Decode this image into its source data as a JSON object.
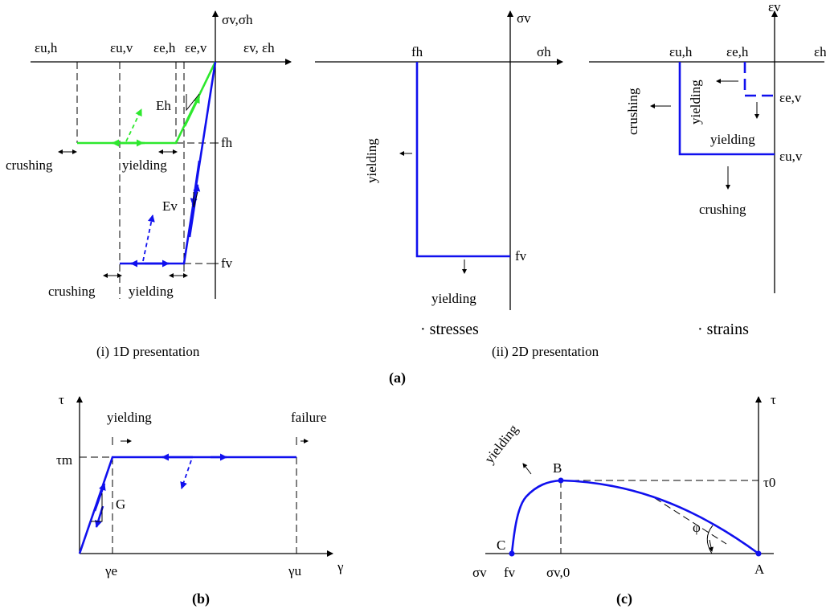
{
  "panel_a": {
    "p1": {
      "axis_top": "σv,σh",
      "axis_right": "εv, εh",
      "strain_labels": [
        "εu,h",
        "εu,v",
        "εe,h",
        "εe,v"
      ],
      "f_h": "fh",
      "f_v": "fv",
      "E_h": "Eh",
      "E_v": "Ev",
      "crushing_1": "crushing",
      "yielding_1": "yielding",
      "crushing_2": "crushing",
      "yielding_2": "yielding",
      "caption": "(i) 1D presentation"
    },
    "p2": {
      "axis_top": "σv",
      "axis_right": "σh",
      "f_h": "fh",
      "f_v": "fv",
      "yielding_left": "yielding",
      "yielding_bottom": "yielding",
      "caption": "· stresses"
    },
    "p3": {
      "axis_top": "εv",
      "axis_right": "εh",
      "eps_uh": "εu,h",
      "eps_eh": "εe,h",
      "eps_ev": "εe,v",
      "eps_uv": "εu,v",
      "crushing_left": "crushing",
      "yielding_left": "yielding",
      "yielding_bottom": "yielding",
      "crushing_bottom": "crushing",
      "caption": "· strains"
    },
    "caption": "(ii) 2D presentation",
    "label": "(a)"
  },
  "panel_b": {
    "axis_y": "τ",
    "axis_x": "γ",
    "tau_m": "τm",
    "G": "G",
    "gamma_e": "γe",
    "gamma_u": "γu",
    "yielding": "yielding",
    "failure": "failure",
    "label": "(b)"
  },
  "panel_c": {
    "axis_y": "τ",
    "tau_0": "τ0",
    "B": "B",
    "C": "C",
    "A": "A",
    "phi": "φ",
    "sigma_v": "σv",
    "f_v": "fv",
    "sigma_v0": "σv,0",
    "yielding": "yielding",
    "label": "(c)"
  },
  "colors": {
    "blue": "#1010ee",
    "green": "#2ee82e",
    "black": "#000000"
  }
}
